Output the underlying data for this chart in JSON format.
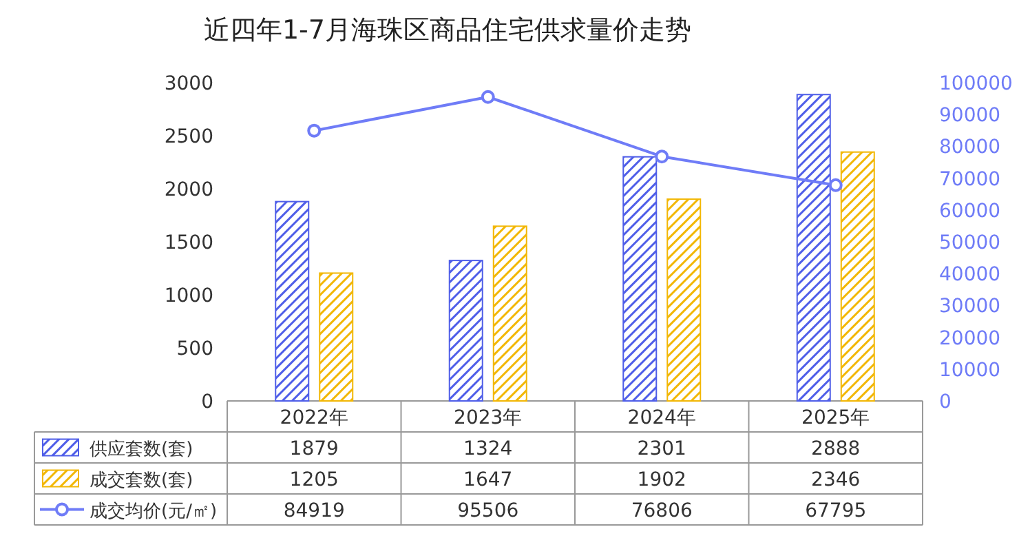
{
  "chart_data": {
    "type": "bar",
    "title": "近四年1-7月海珠区商品住宅供求量价走势",
    "categories": [
      "2022年",
      "2023年",
      "2024年",
      "2025年"
    ],
    "series": [
      {
        "name": "供应套数(套)",
        "color": "#4f5ee8",
        "values": [
          1879,
          1324,
          2301,
          2888
        ]
      },
      {
        "name": "成交套数(套)",
        "color": "#f2b705",
        "values": [
          1205,
          1647,
          1902,
          2346
        ]
      },
      {
        "name": "成交均价(元/㎡)",
        "type": "line",
        "axis": "y2",
        "color": "#6f7cf7",
        "marker": "circle",
        "values": [
          84919,
          95506,
          76806,
          67795
        ]
      }
    ],
    "ylim": [
      0,
      3000
    ],
    "yticks": [
      0,
      500,
      1000,
      1500,
      2000,
      2500,
      3000
    ],
    "y2lim": [
      0,
      100000
    ],
    "y2ticks": [
      0,
      10000,
      20000,
      30000,
      40000,
      50000,
      60000,
      70000,
      80000,
      90000,
      100000
    ],
    "data_labels": true,
    "legend": "bottom",
    "grid": false
  }
}
